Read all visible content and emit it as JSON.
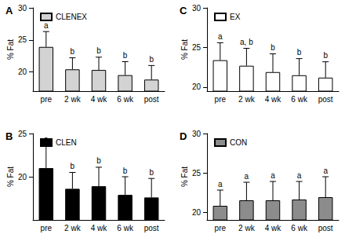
{
  "chart_data": [
    {
      "type": "bar",
      "title": "A",
      "y_label": "% Fat",
      "categories": [
        "pre",
        "2 wk",
        "4 wk",
        "6 wk",
        "post"
      ],
      "series": [
        {
          "name": "CLENEX",
          "color": "#d3d3d3",
          "values": [
            23.9,
            20.4,
            20.3,
            19.5,
            18.8
          ],
          "errors": [
            2.4,
            1.8,
            2.0,
            2.1,
            2.2
          ],
          "letters": [
            "a",
            "b",
            "b",
            "b",
            "b"
          ]
        }
      ],
      "ylim": [
        17,
        30
      ],
      "yticks": [
        20,
        25,
        30
      ],
      "legend": "top-left"
    },
    {
      "type": "bar",
      "title": "B",
      "y_label": "% Fat",
      "categories": [
        "pre",
        "2 wk",
        "4 wk",
        "6 wk",
        "post"
      ],
      "series": [
        {
          "name": "CLEN",
          "color": "#000000",
          "values": [
            21.0,
            18.6,
            18.9,
            17.9,
            17.6
          ],
          "errors": [
            2.6,
            1.9,
            2.2,
            2.1,
            2.2
          ],
          "letters": [
            "a",
            "b",
            "b",
            "b",
            "b"
          ]
        }
      ],
      "ylim": [
        15,
        25
      ],
      "yticks": [
        20,
        25
      ],
      "legend": "top-left"
    },
    {
      "type": "bar",
      "title": "C",
      "y_label": "% Fat",
      "categories": [
        "pre",
        "2 wk",
        "4 wk",
        "6 wk",
        "post"
      ],
      "series": [
        {
          "name": "EX",
          "color": "#ffffff",
          "values": [
            23.4,
            22.7,
            21.9,
            21.5,
            21.2
          ],
          "errors": [
            2.2,
            2.2,
            2.3,
            2.1,
            2.0
          ],
          "letters": [
            "a",
            "a, b",
            "b",
            "b",
            "b"
          ]
        }
      ],
      "ylim": [
        19.5,
        30
      ],
      "yticks": [
        20,
        25,
        30
      ],
      "legend": "top-left"
    },
    {
      "type": "bar",
      "title": "D",
      "y_label": "% Fat",
      "categories": [
        "pre",
        "2 wk",
        "4 wk",
        "6 wk",
        "post"
      ],
      "series": [
        {
          "name": "CON",
          "color": "#8c8c8c",
          "values": [
            20.8,
            21.5,
            21.5,
            21.6,
            21.9
          ],
          "errors": [
            2.0,
            2.3,
            2.4,
            2.3,
            2.6
          ],
          "letters": [
            "a",
            "a",
            "a",
            "a",
            "a"
          ]
        }
      ],
      "ylim": [
        19,
        30
      ],
      "yticks": [
        20,
        25,
        30
      ],
      "legend": "top-left"
    }
  ]
}
